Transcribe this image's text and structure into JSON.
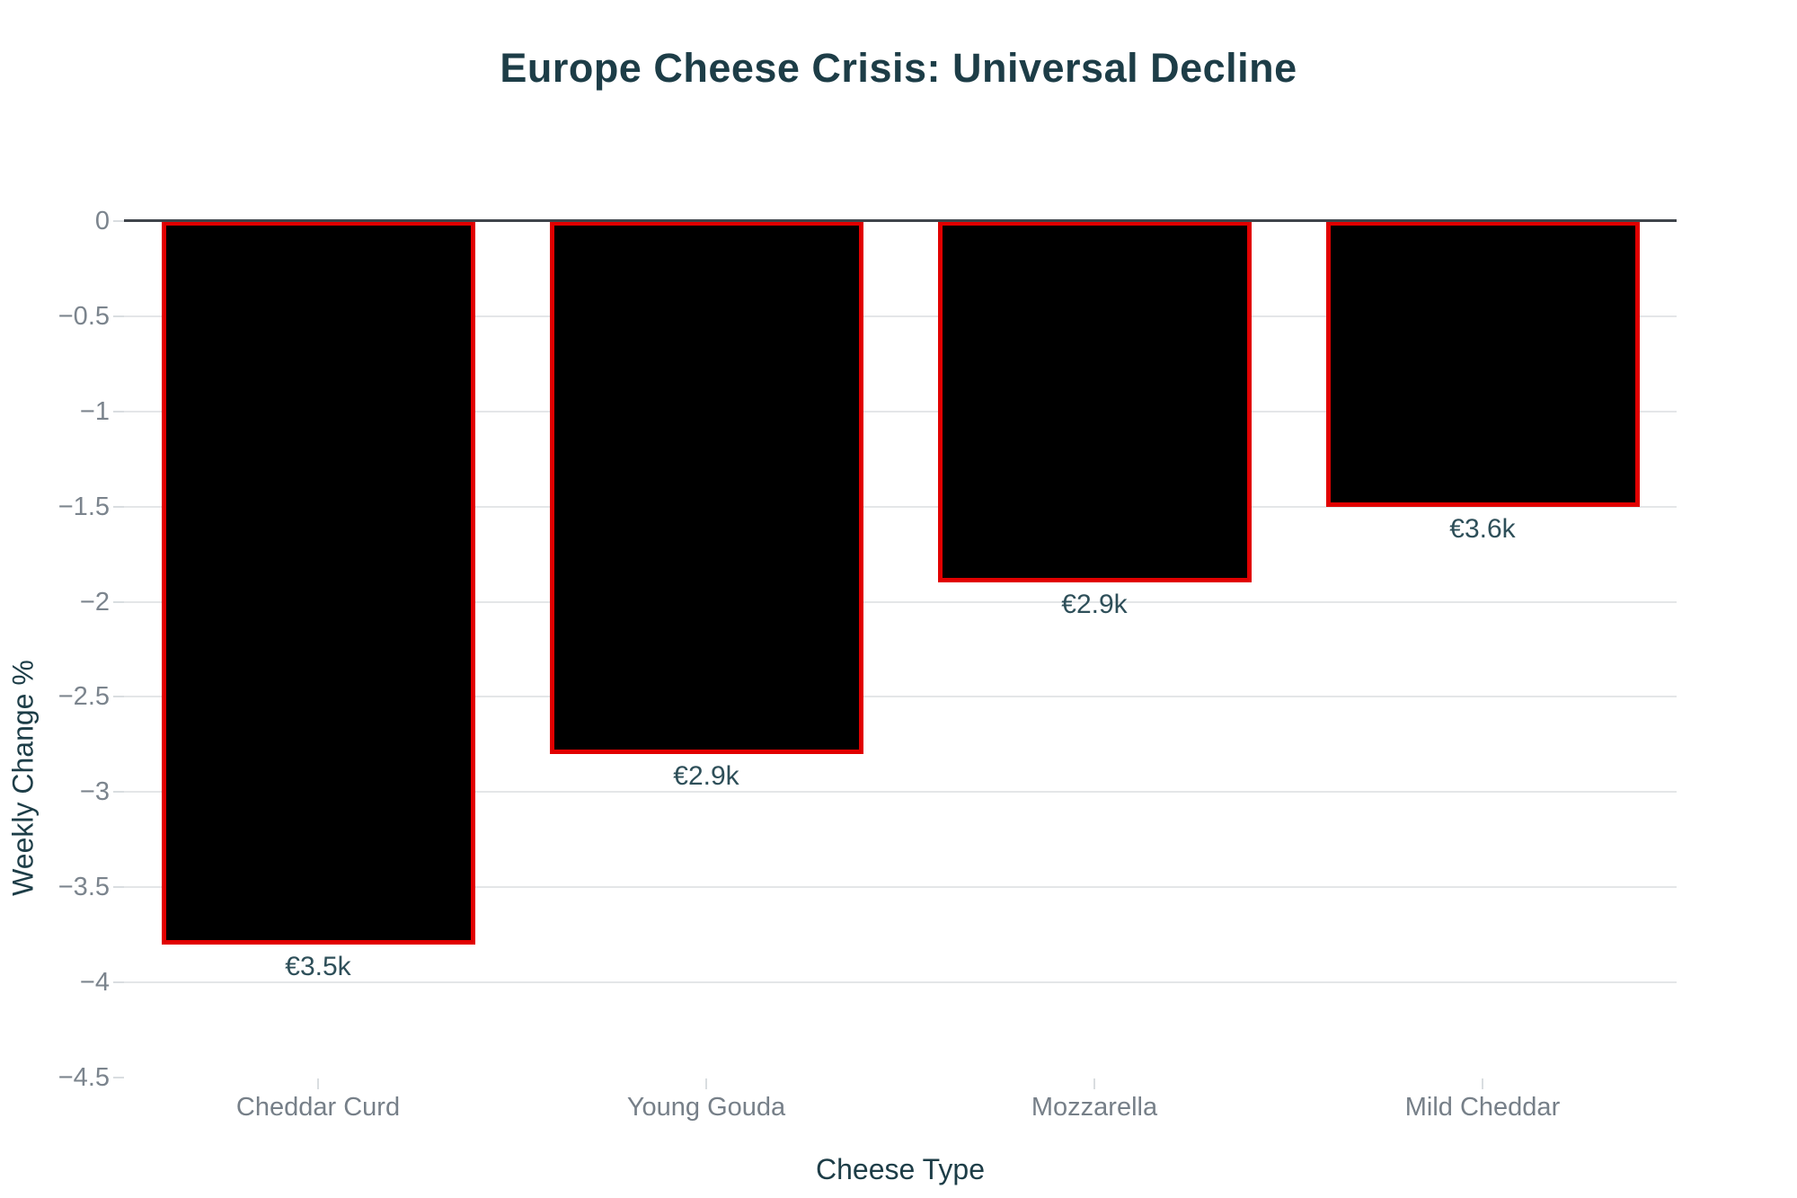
{
  "chart_data": {
    "type": "bar",
    "title": "Europe Cheese Crisis: Universal Decline",
    "xlabel": "Cheese Type",
    "ylabel": "Weekly Change %",
    "categories": [
      "Cheddar Curd",
      "Young Gouda",
      "Mozzarella",
      "Mild Cheddar"
    ],
    "values": [
      -3.8,
      -2.8,
      -1.9,
      -1.5
    ],
    "bar_labels": [
      "€3.5k",
      "€2.9k",
      "€2.9k",
      "€3.6k"
    ],
    "yticks": [
      0,
      -0.5,
      -1,
      -1.5,
      -2,
      -2.5,
      -3,
      -3.5,
      -4,
      -4.5
    ],
    "ytick_labels": [
      "0",
      "−0.5",
      "−1",
      "−1.5",
      "−2",
      "−2.5",
      "−3",
      "−3.5",
      "−4",
      "−4.5"
    ],
    "ylim": [
      0,
      -4.5
    ],
    "grid": true,
    "legend": false,
    "colors": {
      "background": "#ffffff",
      "bar_fill": "#000000",
      "bar_border": "#e10000",
      "grid_line": "#e4e6e8",
      "zero_line": "#3f454b",
      "tick_label": "#7b848d",
      "category_label": "#767f88",
      "title": "#1d3d47",
      "axis_title": "#1d3d47",
      "value_label": "#2e4f59"
    }
  }
}
